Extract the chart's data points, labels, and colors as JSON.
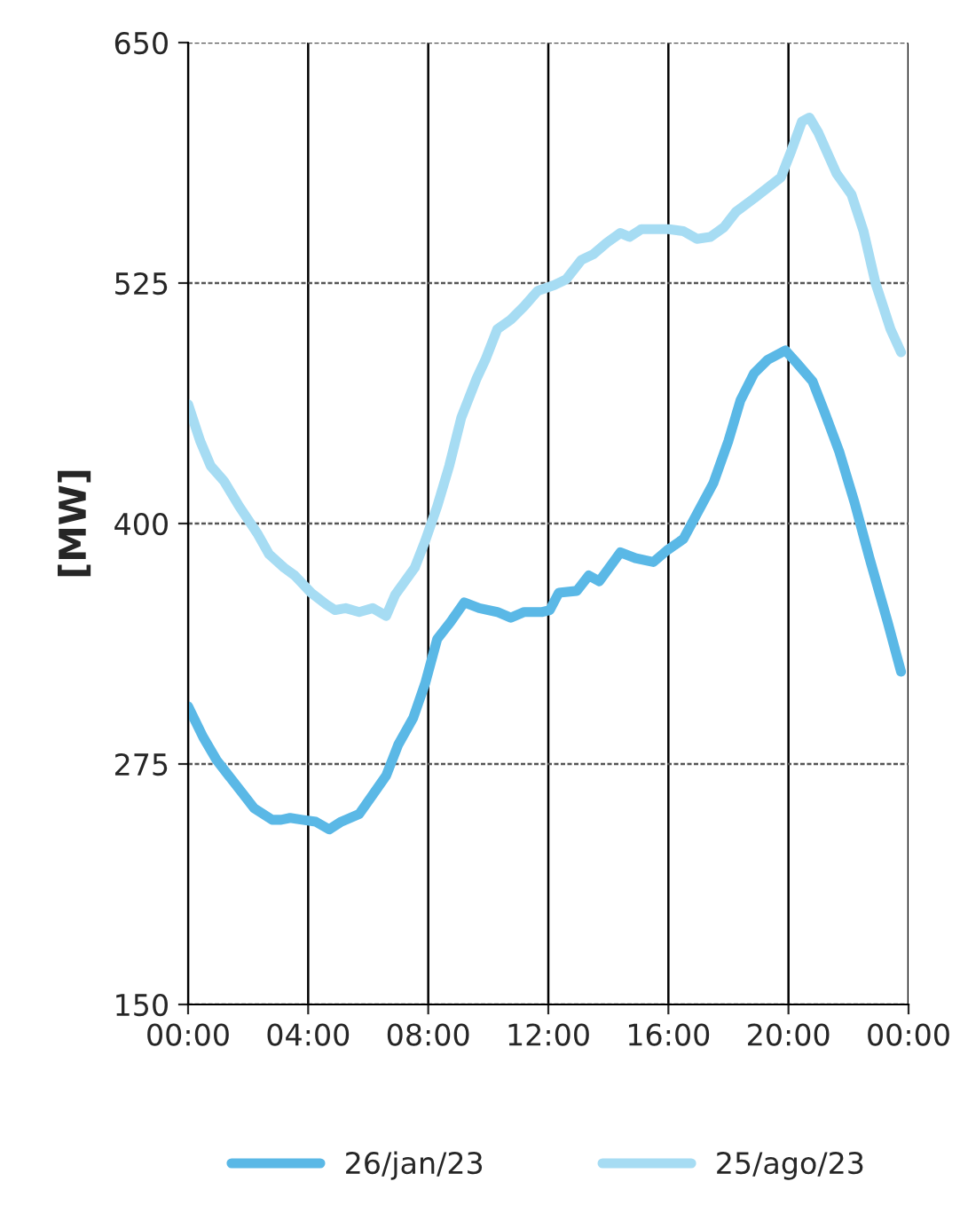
{
  "chart_data": {
    "type": "line",
    "ylabel": "[MW]",
    "xlim": [
      0,
      24
    ],
    "ylim": [
      150,
      650
    ],
    "xticks": [
      {
        "value": 0,
        "label": "00:00"
      },
      {
        "value": 4,
        "label": "04:00"
      },
      {
        "value": 8,
        "label": "08:00"
      },
      {
        "value": 12,
        "label": "12:00"
      },
      {
        "value": 16,
        "label": "16:00"
      },
      {
        "value": 20,
        "label": "20:00"
      },
      {
        "value": 24,
        "label": "00:00"
      }
    ],
    "yticks": [
      150,
      275,
      400,
      525,
      650
    ],
    "grid": true,
    "legend": "bottom",
    "marker": "none",
    "line_style": "solid",
    "series": [
      {
        "name": "26/jan/23",
        "color": "#5ab8e6",
        "x": [
          0,
          0.5,
          0.95,
          1.7,
          2.2,
          2.8,
          3.1,
          3.4,
          3.8,
          4.25,
          4.7,
          5.1,
          5.7,
          6.15,
          6.6,
          7.0,
          7.5,
          7.9,
          8.3,
          8.75,
          9.2,
          9.7,
          10.3,
          10.75,
          11.2,
          11.8,
          12.05,
          12.35,
          12.95,
          13.35,
          13.7,
          14.4,
          14.9,
          15.5,
          15.95,
          16.5,
          16.95,
          17.5,
          18.0,
          18.4,
          18.85,
          19.3,
          19.9,
          20.3,
          20.8,
          21.2,
          21.7,
          22.2,
          22.7,
          23.3,
          23.75
        ],
        "values": [
          305,
          289,
          277,
          262,
          252,
          246,
          246,
          247,
          246,
          245,
          241,
          245,
          249,
          259,
          269,
          285,
          299,
          317,
          340,
          349,
          359,
          356,
          354,
          351,
          354,
          354,
          355,
          364,
          365,
          373,
          370,
          385,
          382,
          380,
          386,
          392,
          405,
          421,
          443,
          464,
          478,
          485,
          490,
          483,
          474,
          458,
          437,
          411,
          382,
          349,
          323
        ]
      },
      {
        "name": "25/ago/23",
        "color": "#a6dcf3",
        "x": [
          0,
          0.4,
          0.75,
          1.2,
          1.7,
          2.3,
          2.7,
          3.2,
          3.55,
          4.1,
          4.6,
          4.9,
          5.25,
          5.7,
          6.15,
          6.6,
          6.9,
          7.55,
          7.9,
          8.3,
          8.7,
          9.1,
          9.6,
          9.9,
          10.3,
          10.75,
          11.2,
          11.65,
          12.2,
          12.6,
          13.1,
          13.5,
          13.95,
          14.4,
          14.7,
          15.1,
          16.0,
          16.5,
          16.95,
          17.4,
          17.85,
          18.25,
          18.85,
          19.75,
          20.1,
          20.45,
          20.7,
          21.0,
          21.6,
          22.1,
          22.5,
          22.9,
          23.4,
          23.75
        ],
        "values": [
          462,
          443,
          430,
          422,
          409,
          395,
          384,
          377,
          373,
          364,
          358,
          355,
          356,
          354,
          356,
          352,
          363,
          377,
          391,
          409,
          430,
          455,
          475,
          485,
          501,
          506,
          513,
          521,
          524,
          527,
          537,
          540,
          546,
          551,
          549,
          553,
          553,
          552,
          548,
          549,
          554,
          562,
          569,
          580,
          594,
          609,
          611,
          603,
          582,
          571,
          552,
          525,
          501,
          489
        ]
      }
    ]
  }
}
